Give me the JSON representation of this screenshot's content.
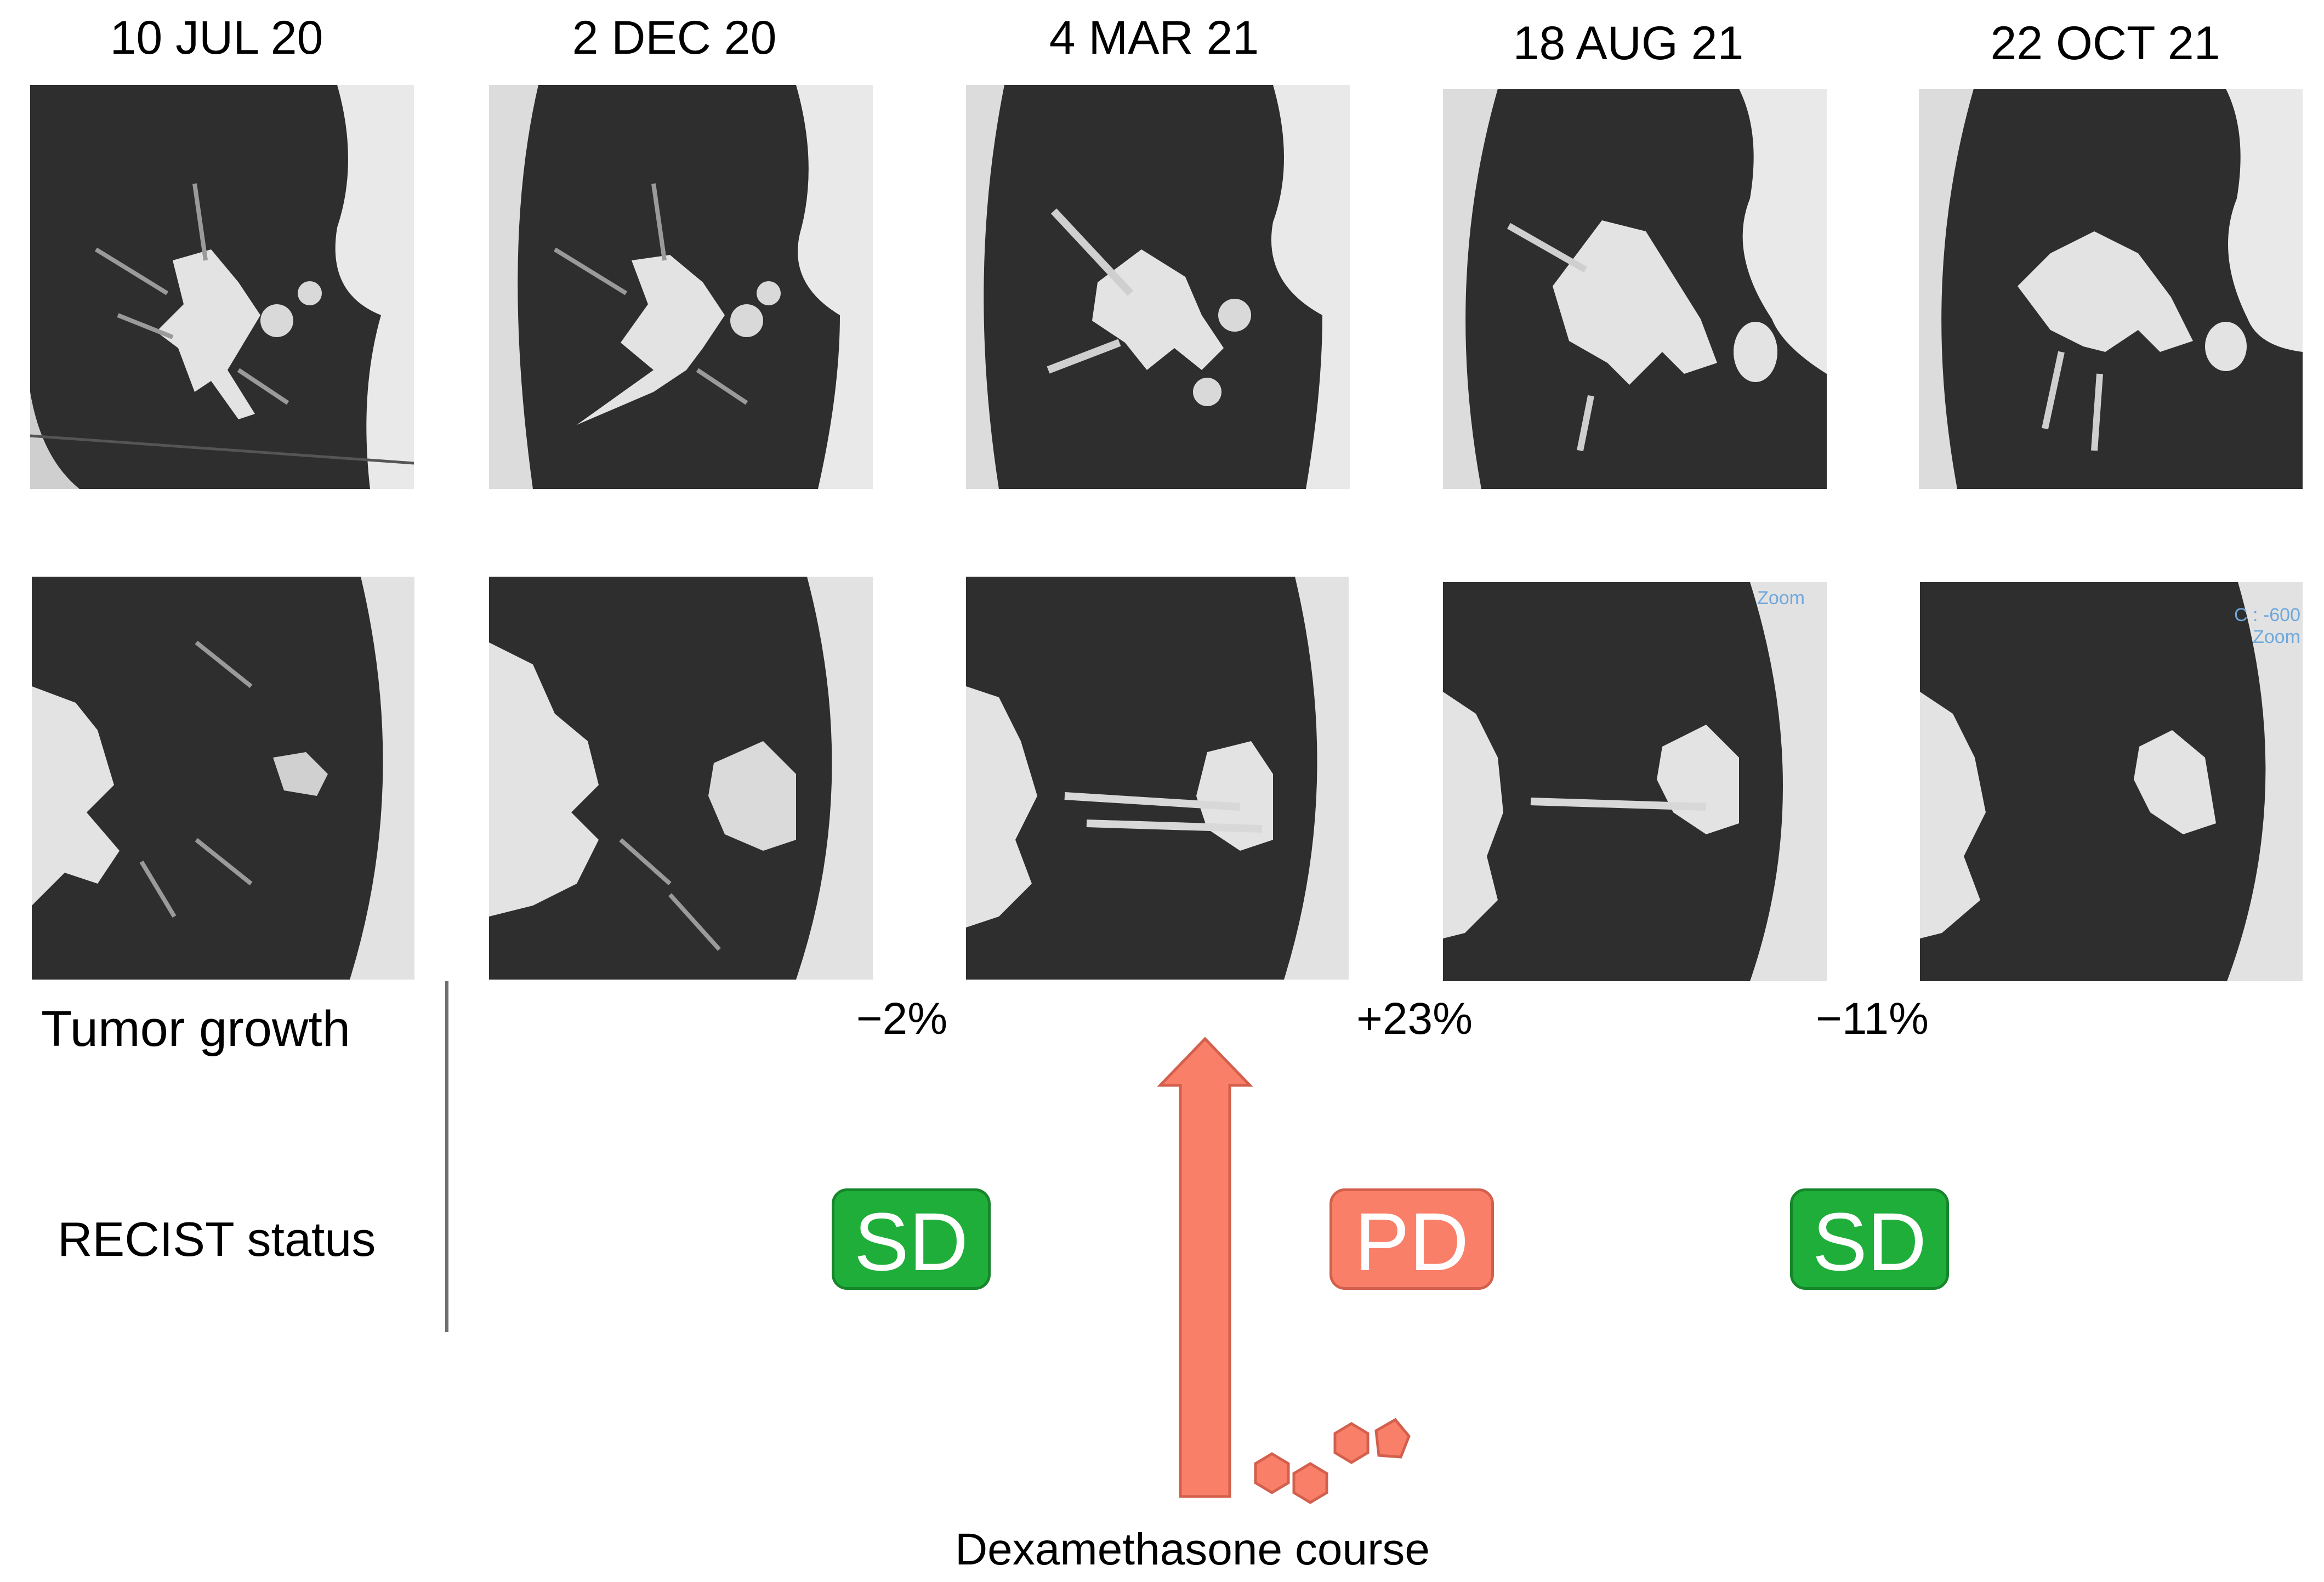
{
  "dates": [
    "10 JUL 20",
    "2 DEC 20",
    "4 MAR 21",
    "18 AUG 21",
    "22 OCT 21"
  ],
  "row_labels": {
    "tumor_growth": "Tumor growth",
    "recist_status": "RECIST status"
  },
  "tumor_growth": [
    "−2%",
    "+23%",
    "−11%"
  ],
  "recist_status": [
    "SD",
    "PD",
    "SD"
  ],
  "colors": {
    "sd_badge": "#1fae3a",
    "pd_badge": "#fa7f69",
    "arrow": "#fa7f69",
    "molecule": "#fa7f69"
  },
  "scan_overlays": {
    "scan_4": "Zoom",
    "scan_5": "C : -600 Zoom"
  },
  "treatment_label": "Dexamethasone course"
}
